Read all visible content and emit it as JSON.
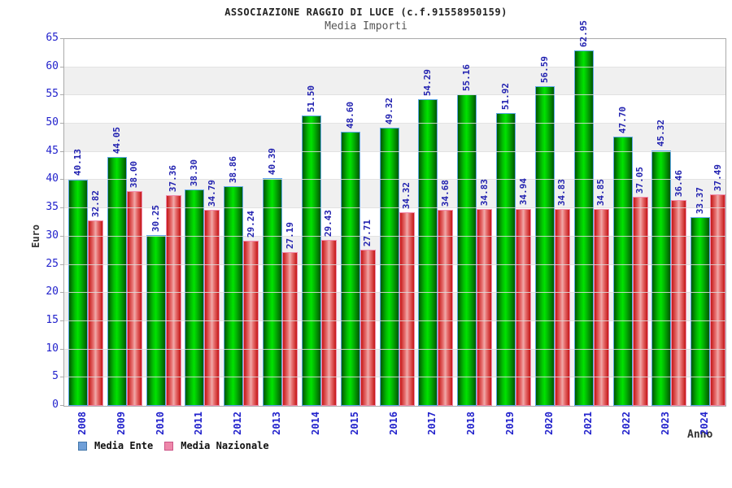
{
  "title": "ASSOCIAZIONE RAGGIO DI LUCE (c.f.91558950159)",
  "subtitle": "Media Importi",
  "chart_data": {
    "type": "bar",
    "title": "ASSOCIAZIONE RAGGIO DI LUCE (c.f.91558950159)",
    "subtitle": "Media Importi",
    "xlabel": "Anno",
    "ylabel": "Euro",
    "ylim": [
      0,
      65
    ],
    "ytick_step": 5,
    "grid": true,
    "alternating_bands": true,
    "legend_position": "bottom-left",
    "categories": [
      "2008",
      "2009",
      "2010",
      "2011",
      "2012",
      "2013",
      "2014",
      "2015",
      "2016",
      "2017",
      "2018",
      "2019",
      "2020",
      "2021",
      "2022",
      "2023",
      "2024"
    ],
    "series": [
      {
        "name": "Media Ente",
        "color": "#00cc00",
        "legend_color": "#6f9fd8",
        "values": [
          40.13,
          44.05,
          30.25,
          38.3,
          38.86,
          40.39,
          51.5,
          48.6,
          49.32,
          54.29,
          55.16,
          51.92,
          56.59,
          62.95,
          47.7,
          45.32,
          33.37
        ]
      },
      {
        "name": "Media Nazionale",
        "color": "#ee3333",
        "legend_color": "#ee88aa",
        "values": [
          32.82,
          38.0,
          37.36,
          34.79,
          29.24,
          27.19,
          29.43,
          27.71,
          34.32,
          34.68,
          34.83,
          34.94,
          34.83,
          34.85,
          37.05,
          36.46,
          37.49
        ]
      }
    ],
    "value_label_color": "#2222b0",
    "tick_label_color": "#2222cc"
  }
}
